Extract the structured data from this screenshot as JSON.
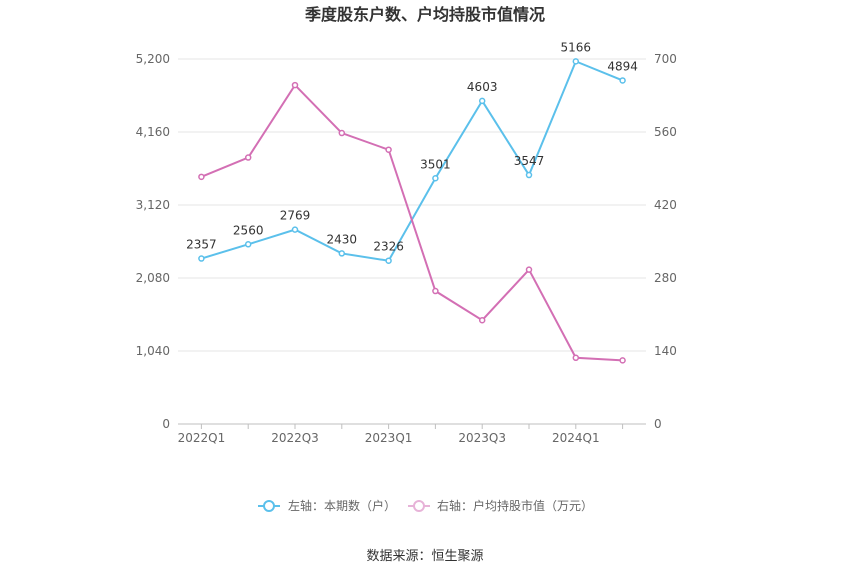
{
  "chart_data": {
    "type": "line",
    "title": "季度股东户数、户均持股市值情况",
    "categories": [
      "2022Q1",
      "2022Q2",
      "2022Q3",
      "2022Q4",
      "2023Q1",
      "2023Q2",
      "2023Q3",
      "2023Q4",
      "2024Q1",
      "2024Q2"
    ],
    "x_tick_labels": [
      "2022Q1",
      "2022Q3",
      "2023Q1",
      "2023Q3",
      "2024Q1"
    ],
    "left_axis": {
      "ylim": [
        0,
        5200
      ],
      "ticks": [
        "0",
        "1,040",
        "2,080",
        "3,120",
        "4,160",
        "5,200"
      ]
    },
    "right_axis": {
      "ylim": [
        0,
        700
      ],
      "ticks": [
        "0",
        "140",
        "280",
        "420",
        "560",
        "700"
      ]
    },
    "series": [
      {
        "name": "左轴：本期数（户）",
        "axis": "left",
        "color": "#5bc0eb",
        "values": [
          2357,
          2560,
          2769,
          2430,
          2326,
          3501,
          4603,
          3547,
          5166,
          4894
        ],
        "labels": [
          "2357",
          "2560",
          "2769",
          "2430",
          "2326",
          "3501",
          "4603",
          "3547",
          "5166",
          "4894"
        ]
      },
      {
        "name": "右轴：户均持股市值（万元）",
        "axis": "right",
        "color": "#d36fb4",
        "values": [
          474,
          511,
          650,
          558,
          526,
          255,
          199,
          296,
          127,
          122
        ]
      }
    ],
    "legend_position": "bottom-center",
    "grid": true,
    "source": "数据来源：恒生聚源"
  }
}
